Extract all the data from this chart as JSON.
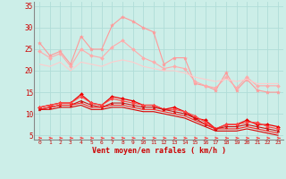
{
  "background_color": "#cceee8",
  "grid_color": "#b0ddd8",
  "xlabel": "Vent moyen/en rafales ( km/h )",
  "x": [
    0,
    1,
    2,
    3,
    4,
    5,
    6,
    7,
    8,
    9,
    10,
    11,
    12,
    13,
    14,
    15,
    16,
    17,
    18,
    19,
    20,
    21,
    22,
    23
  ],
  "ylim": [
    4,
    36
  ],
  "xlim": [
    -0.5,
    23.5
  ],
  "series": [
    {
      "color": "#ff9999",
      "linewidth": 0.8,
      "marker": "*",
      "markersize": 3,
      "values": [
        26.5,
        23.5,
        24.5,
        21.5,
        28.0,
        25.0,
        25.0,
        30.5,
        32.5,
        31.5,
        30.0,
        29.0,
        21.5,
        23.0,
        23.0,
        17.0,
        16.5,
        15.5,
        19.5,
        15.5,
        18.0,
        15.5,
        15.0,
        15.0
      ]
    },
    {
      "color": "#ffaaaa",
      "linewidth": 0.8,
      "marker": "D",
      "markersize": 2,
      "values": [
        24.5,
        23.0,
        24.0,
        21.0,
        25.0,
        23.5,
        23.0,
        25.5,
        27.0,
        25.0,
        23.0,
        22.0,
        20.5,
        21.0,
        20.5,
        17.5,
        16.5,
        16.0,
        18.5,
        16.0,
        18.5,
        16.5,
        16.5,
        16.5
      ]
    },
    {
      "color": "#ffcccc",
      "linewidth": 0.8,
      "marker": null,
      "markersize": 0,
      "values": [
        21.5,
        21.0,
        22.0,
        20.0,
        22.0,
        21.5,
        21.0,
        22.0,
        22.5,
        22.0,
        21.0,
        20.5,
        20.0,
        20.0,
        19.5,
        18.5,
        18.0,
        17.5,
        18.0,
        17.5,
        18.0,
        17.0,
        17.0,
        17.0
      ]
    },
    {
      "color": "#ee0000",
      "linewidth": 0.9,
      "marker": "D",
      "markersize": 2,
      "values": [
        11.5,
        12.0,
        12.5,
        12.5,
        14.5,
        12.5,
        12.0,
        14.0,
        13.5,
        13.0,
        12.0,
        12.0,
        11.0,
        11.5,
        10.5,
        9.0,
        8.5,
        6.5,
        7.5,
        7.5,
        8.5,
        7.5,
        7.5,
        7.0
      ]
    },
    {
      "color": "#ff4444",
      "linewidth": 0.8,
      "marker": "D",
      "markersize": 2,
      "values": [
        11.5,
        12.0,
        12.5,
        12.5,
        14.0,
        12.5,
        12.0,
        13.5,
        13.0,
        12.5,
        12.0,
        12.0,
        11.0,
        11.0,
        10.5,
        9.5,
        8.0,
        6.5,
        7.5,
        7.5,
        8.0,
        8.0,
        7.0,
        6.5
      ]
    },
    {
      "color": "#cc1111",
      "linewidth": 0.8,
      "marker": "^",
      "markersize": 2,
      "values": [
        11.0,
        11.5,
        12.0,
        12.0,
        13.0,
        12.0,
        11.5,
        12.5,
        12.5,
        12.0,
        11.5,
        11.5,
        11.0,
        10.5,
        10.0,
        9.0,
        7.5,
        6.5,
        7.0,
        7.0,
        7.5,
        7.0,
        6.5,
        6.0
      ]
    },
    {
      "color": "#ff2222",
      "linewidth": 0.8,
      "marker": null,
      "markersize": 0,
      "values": [
        11.0,
        11.5,
        12.0,
        12.0,
        12.5,
        11.5,
        11.5,
        12.0,
        12.0,
        11.5,
        11.0,
        11.0,
        10.5,
        10.0,
        9.5,
        8.5,
        7.5,
        6.5,
        6.5,
        6.5,
        7.0,
        6.5,
        6.0,
        5.5
      ]
    },
    {
      "color": "#dd0000",
      "linewidth": 0.8,
      "marker": null,
      "markersize": 0,
      "values": [
        11.0,
        11.0,
        11.5,
        11.5,
        12.0,
        11.0,
        11.0,
        11.5,
        11.5,
        11.0,
        10.5,
        10.5,
        10.0,
        9.5,
        9.0,
        8.0,
        7.0,
        6.0,
        6.0,
        6.0,
        6.5,
        6.0,
        5.5,
        5.0
      ]
    }
  ],
  "yticks": [
    5,
    10,
    15,
    20,
    25,
    30,
    35
  ],
  "xticks": [
    0,
    1,
    2,
    3,
    4,
    5,
    6,
    7,
    8,
    9,
    10,
    11,
    12,
    13,
    14,
    15,
    16,
    17,
    18,
    19,
    20,
    21,
    22,
    23
  ]
}
